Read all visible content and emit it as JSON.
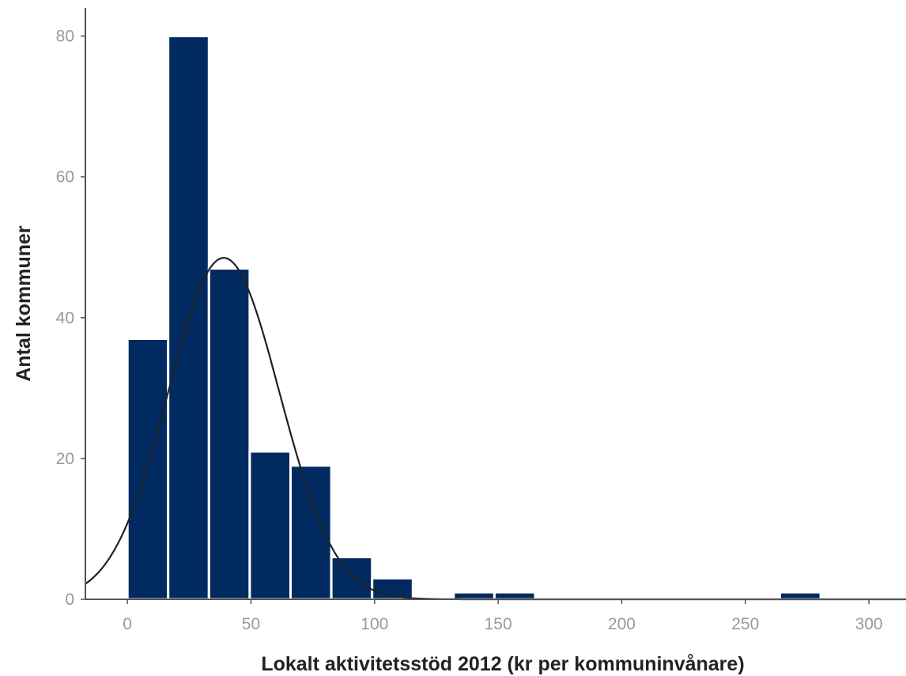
{
  "chart_data": {
    "type": "bar",
    "subtype": "histogram-with-normal-curve",
    "xlabel": "Lokalt aktivitetsstöd 2012 (kr per kommuninvånare)",
    "ylabel": "Antal kommuner",
    "xlim": [
      -17,
      315
    ],
    "ylim": [
      0,
      84
    ],
    "xticks": [
      0,
      50,
      100,
      150,
      200,
      250,
      300
    ],
    "yticks": [
      0,
      20,
      40,
      60,
      80
    ],
    "bins": [
      {
        "x0": 0,
        "x1": 16.5,
        "count": 37
      },
      {
        "x0": 16.5,
        "x1": 33,
        "count": 80
      },
      {
        "x0": 33,
        "x1": 49.5,
        "count": 47
      },
      {
        "x0": 49.5,
        "x1": 66,
        "count": 21
      },
      {
        "x0": 66,
        "x1": 82.5,
        "count": 19
      },
      {
        "x0": 82.5,
        "x1": 99,
        "count": 6
      },
      {
        "x0": 99,
        "x1": 115.5,
        "count": 3
      },
      {
        "x0": 115.5,
        "x1": 132,
        "count": 0
      },
      {
        "x0": 132,
        "x1": 148.5,
        "count": 1
      },
      {
        "x0": 148.5,
        "x1": 165,
        "count": 1
      },
      {
        "x0": 264,
        "x1": 280.5,
        "count": 1
      }
    ],
    "normal_curve": {
      "mean": 39,
      "sd": 22.5,
      "peak": 48.5
    },
    "grid": false,
    "colors": {
      "bar": "#002a60",
      "bar_edge": "#ffffff",
      "curve": "#222222",
      "axis": "#555555",
      "tick_text": "#999999"
    }
  }
}
